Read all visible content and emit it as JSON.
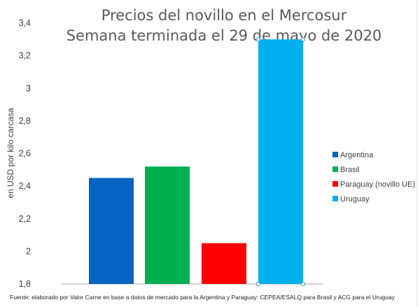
{
  "chart_data": {
    "type": "bar",
    "title": "Precios del novillo en el Mercosur",
    "subtitle": "Semana terminada el 29 de mayo de 2020",
    "ylabel": "en USD por kilo carcasa",
    "xlabel": "",
    "ylim": [
      1.8,
      3.4
    ],
    "yticks": [
      "1,8",
      "2",
      "2,2",
      "2,4",
      "2,6",
      "2,8",
      "3",
      "3,2",
      "3,4"
    ],
    "ytick_values": [
      1.8,
      2.0,
      2.2,
      2.4,
      2.6,
      2.8,
      3.0,
      3.2,
      3.4
    ],
    "grid": false,
    "legend_position": "right",
    "categories": [
      "Argentina",
      "Brasil",
      "Paraguay (novillo UE)",
      "Uruguay"
    ],
    "values": [
      2.45,
      2.52,
      2.05,
      3.3
    ],
    "colors": [
      "#0563C1",
      "#00B050",
      "#FF0000",
      "#00B0F0"
    ],
    "footer": "Fuente: elaborado por Valor Carne en base a datos de mercado para la Argentina y Paraguay: CEPEA/ESALQ para Brasil y ACG para el Uruguay"
  }
}
